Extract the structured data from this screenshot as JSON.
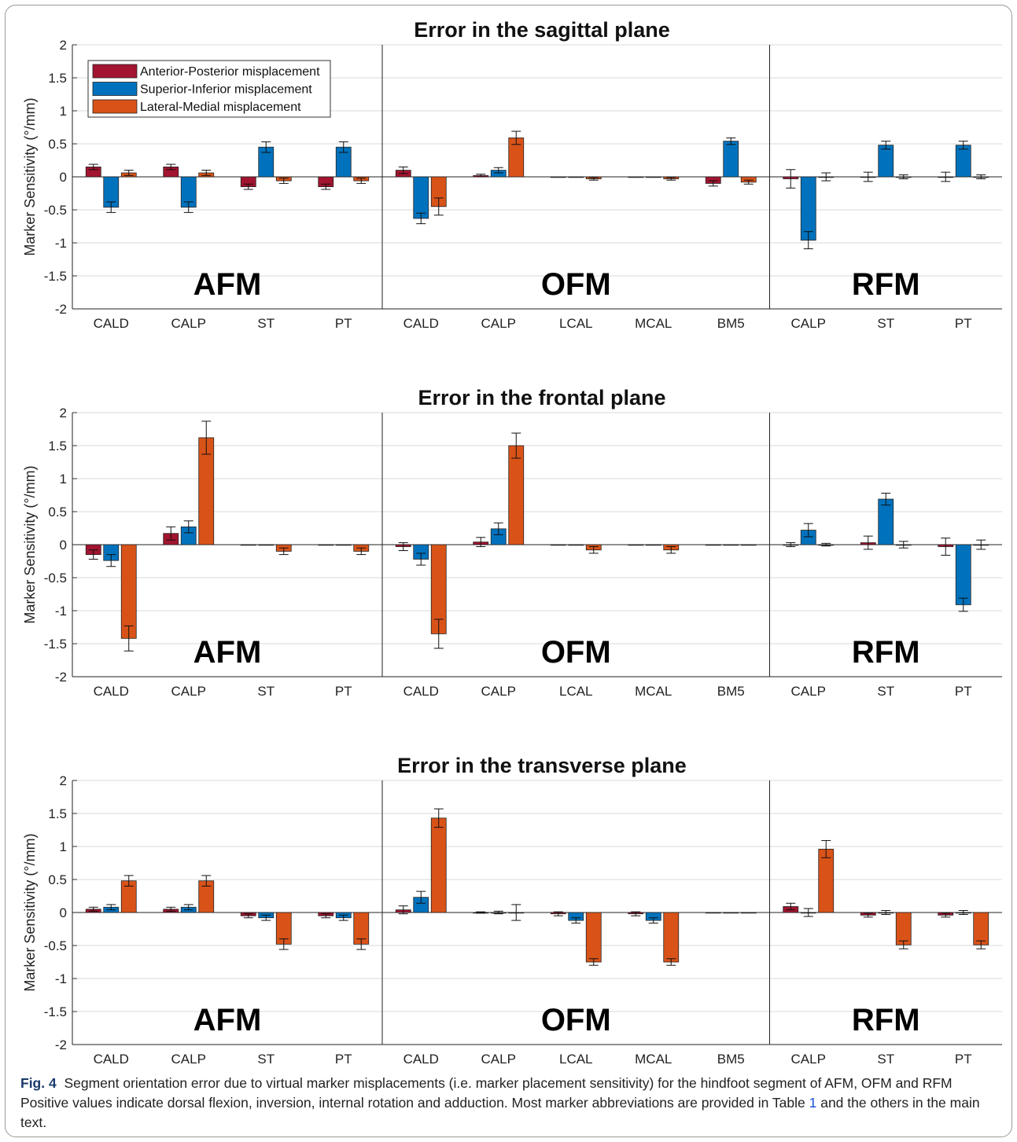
{
  "chart_data": {
    "type": "bar",
    "ylabel": "Marker Sensitivity (°/mm)",
    "ylim": [
      -2,
      2
    ],
    "yticks": [
      2,
      1.5,
      1,
      0.5,
      0,
      -0.5,
      -1,
      -1.5,
      -2
    ],
    "ytick_labels": [
      "2",
      "1.5",
      "1",
      "0.5",
      "0",
      "-0.5",
      "-1",
      "-1.5",
      "-2"
    ],
    "grid": "horizontal",
    "legend_position": "top-left",
    "series": [
      {
        "name": "Anterior-Posterior misplacement",
        "color": "#A2142F"
      },
      {
        "name": "Superior-Inferior misplacement",
        "color": "#0072BD"
      },
      {
        "name": "Lateral-Medial misplacement",
        "color": "#D95319"
      }
    ],
    "groups": [
      {
        "label": "AFM",
        "categories": [
          "CALD",
          "CALP",
          "ST",
          "PT"
        ]
      },
      {
        "label": "OFM",
        "categories": [
          "CALD",
          "CALP",
          "LCAL",
          "MCAL",
          "BM5"
        ]
      },
      {
        "label": "RFM",
        "categories": [
          "CALP",
          "ST",
          "PT"
        ]
      }
    ],
    "panels": [
      {
        "title": "Error in the sagittal plane",
        "values": [
          [
            0.15,
            -0.46,
            0.06
          ],
          [
            0.15,
            -0.46,
            0.06
          ],
          [
            -0.15,
            0.45,
            -0.06
          ],
          [
            -0.15,
            0.45,
            -0.06
          ],
          [
            0.1,
            -0.63,
            -0.45
          ],
          [
            0.02,
            0.1,
            0.59
          ],
          [
            0.0,
            0.0,
            -0.03
          ],
          [
            0.0,
            0.0,
            -0.03
          ],
          [
            -0.1,
            0.54,
            -0.08
          ],
          [
            -0.03,
            -0.96,
            0.0
          ],
          [
            0.0,
            0.48,
            0.0
          ],
          [
            0.0,
            0.48,
            0.0
          ]
        ],
        "errors": [
          [
            0.04,
            0.08,
            0.04
          ],
          [
            0.04,
            0.08,
            0.04
          ],
          [
            0.04,
            0.08,
            0.04
          ],
          [
            0.04,
            0.08,
            0.04
          ],
          [
            0.05,
            0.08,
            0.13
          ],
          [
            0.02,
            0.04,
            0.1
          ],
          [
            0.0,
            0.0,
            0.02
          ],
          [
            0.0,
            0.0,
            0.02
          ],
          [
            0.04,
            0.05,
            0.03
          ],
          [
            0.14,
            0.13,
            0.06
          ],
          [
            0.07,
            0.06,
            0.03
          ],
          [
            0.07,
            0.06,
            0.03
          ]
        ]
      },
      {
        "title": "Error in the frontal plane",
        "values": [
          [
            -0.15,
            -0.24,
            -1.42
          ],
          [
            0.17,
            0.27,
            1.62
          ],
          [
            0.0,
            0.0,
            -0.1
          ],
          [
            0.0,
            0.0,
            -0.1
          ],
          [
            -0.03,
            -0.22,
            -1.35
          ],
          [
            0.04,
            0.24,
            1.5
          ],
          [
            0.0,
            0.0,
            -0.08
          ],
          [
            0.0,
            0.0,
            -0.08
          ],
          [
            0.0,
            0.0,
            0.0
          ],
          [
            0.0,
            0.22,
            0.0
          ],
          [
            0.03,
            0.69,
            0.0
          ],
          [
            -0.03,
            -0.91,
            0.0
          ]
        ],
        "errors": [
          [
            0.07,
            0.09,
            0.19
          ],
          [
            0.1,
            0.09,
            0.25
          ],
          [
            0.0,
            0.0,
            0.05
          ],
          [
            0.0,
            0.0,
            0.05
          ],
          [
            0.06,
            0.09,
            0.22
          ],
          [
            0.07,
            0.09,
            0.19
          ],
          [
            0.0,
            0.0,
            0.05
          ],
          [
            0.0,
            0.0,
            0.05
          ],
          [
            0.0,
            0.0,
            0.0
          ],
          [
            0.03,
            0.1,
            0.02
          ],
          [
            0.1,
            0.09,
            0.05
          ],
          [
            0.13,
            0.1,
            0.07
          ]
        ]
      },
      {
        "title": "Error in the transverse plane",
        "values": [
          [
            0.05,
            0.08,
            0.48
          ],
          [
            0.05,
            0.08,
            0.48
          ],
          [
            -0.05,
            -0.08,
            -0.48
          ],
          [
            -0.05,
            -0.08,
            -0.48
          ],
          [
            0.04,
            0.23,
            1.43
          ],
          [
            0.0,
            0.0,
            0.0
          ],
          [
            -0.02,
            -0.12,
            -0.75
          ],
          [
            -0.02,
            -0.12,
            -0.75
          ],
          [
            0.0,
            0.0,
            0.0
          ],
          [
            0.09,
            0.0,
            0.96
          ],
          [
            -0.04,
            0.0,
            -0.49
          ],
          [
            -0.04,
            0.0,
            -0.49
          ]
        ],
        "errors": [
          [
            0.03,
            0.04,
            0.08
          ],
          [
            0.03,
            0.04,
            0.08
          ],
          [
            0.03,
            0.04,
            0.08
          ],
          [
            0.03,
            0.04,
            0.08
          ],
          [
            0.06,
            0.09,
            0.14
          ],
          [
            0.01,
            0.02,
            0.12
          ],
          [
            0.03,
            0.04,
            0.05
          ],
          [
            0.03,
            0.04,
            0.05
          ],
          [
            0.0,
            0.0,
            0.0
          ],
          [
            0.05,
            0.06,
            0.13
          ],
          [
            0.03,
            0.03,
            0.06
          ],
          [
            0.03,
            0.03,
            0.06
          ]
        ]
      }
    ]
  },
  "caption": {
    "label": "Fig. 4",
    "text_before_ref": "Segment orientation error due to virtual marker misplacements (i.e. marker placement sensitivity) for the hindfoot segment of AFM, OFM and RFM Positive values indicate dorsal flexion, inversion, internal rotation and adduction. Most marker abbreviations are provided in Table",
    "ref": "1",
    "text_after_ref": "and the others in the main text."
  }
}
